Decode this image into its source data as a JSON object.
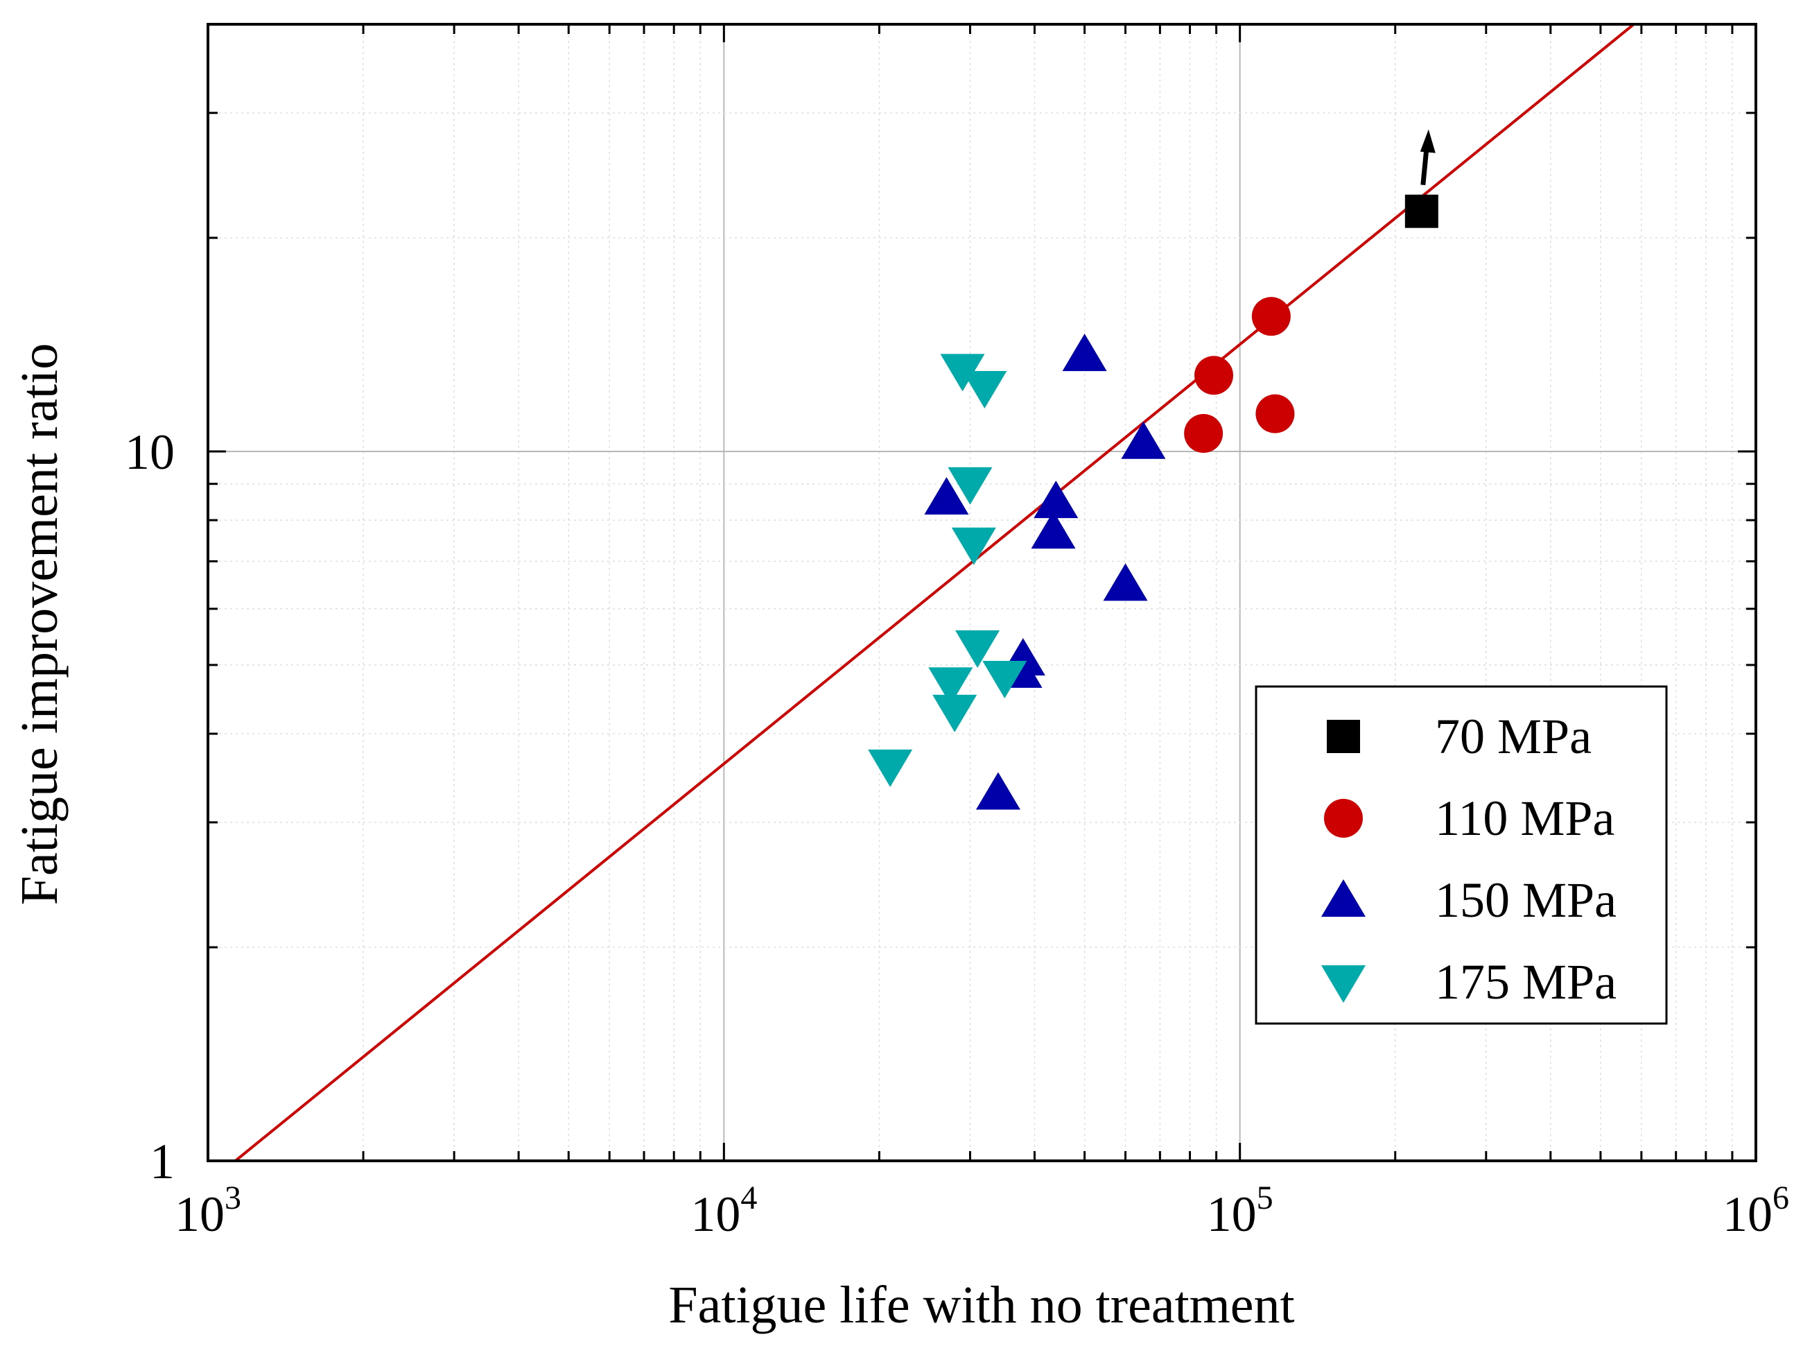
{
  "chart_data": {
    "type": "scatter",
    "title": "",
    "xlabel": "Fatigue life with no treatment",
    "ylabel": "Fatigue improvement ratio",
    "xscale": "log",
    "yscale": "log",
    "xlim": [
      1000,
      1000000
    ],
    "ylim": [
      1,
      40
    ],
    "grid": true,
    "x_ticks": [
      {
        "value": 1000,
        "base": "10",
        "exp": "3"
      },
      {
        "value": 10000,
        "base": "10",
        "exp": "4"
      },
      {
        "value": 100000,
        "base": "10",
        "exp": "5"
      },
      {
        "value": 1000000,
        "base": "10",
        "exp": "6"
      }
    ],
    "y_ticks": [
      {
        "value": 1,
        "label": "1"
      },
      {
        "value": 10,
        "label": "10"
      }
    ],
    "series": [
      {
        "name": "70 MPa",
        "marker": "square",
        "color": "#000000",
        "points": [
          {
            "x": 225000,
            "y": 21.8
          }
        ],
        "annotation": "arrow-up"
      },
      {
        "name": "110 MPa",
        "marker": "circle",
        "color": "#cc0000",
        "points": [
          {
            "x": 85000,
            "y": 10.6
          },
          {
            "x": 89000,
            "y": 12.8
          },
          {
            "x": 115000,
            "y": 15.5
          },
          {
            "x": 117000,
            "y": 11.3
          }
        ]
      },
      {
        "name": "150 MPa",
        "marker": "triangle-up",
        "color": "#0000aa",
        "points": [
          {
            "x": 27000,
            "y": 8.6
          },
          {
            "x": 34000,
            "y": 3.3
          },
          {
            "x": 37500,
            "y": 4.9
          },
          {
            "x": 38000,
            "y": 5.1
          },
          {
            "x": 43500,
            "y": 7.7
          },
          {
            "x": 44000,
            "y": 8.5
          },
          {
            "x": 50000,
            "y": 13.7
          },
          {
            "x": 60000,
            "y": 6.5
          },
          {
            "x": 65000,
            "y": 10.3
          }
        ]
      },
      {
        "name": "175 MPa",
        "marker": "triangle-down",
        "color": "#00aaaa",
        "points": [
          {
            "x": 21000,
            "y": 3.6
          },
          {
            "x": 27500,
            "y": 4.7
          },
          {
            "x": 28000,
            "y": 4.3
          },
          {
            "x": 29000,
            "y": 13.0
          },
          {
            "x": 30000,
            "y": 9.0
          },
          {
            "x": 30500,
            "y": 7.4
          },
          {
            "x": 31000,
            "y": 5.3
          },
          {
            "x": 32000,
            "y": 12.3
          },
          {
            "x": 35000,
            "y": 4.8
          }
        ]
      }
    ],
    "fit_line": {
      "color": "#cc0000",
      "points": [
        {
          "x": 1130,
          "y": 1.0
        },
        {
          "x": 580000,
          "y": 40.0
        }
      ]
    },
    "legend": {
      "placement": "bottom-right"
    }
  }
}
